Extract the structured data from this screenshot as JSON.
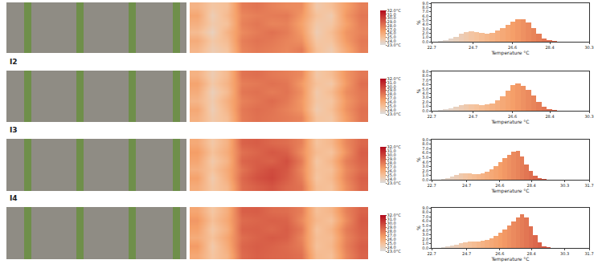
{
  "chart_data": [
    {
      "type": "histogram",
      "bins": [
        23.0,
        23.25,
        23.5,
        23.75,
        24.0,
        24.25,
        24.5,
        24.75,
        25.0,
        25.25,
        25.5,
        25.75,
        26.0,
        26.25,
        26.5,
        26.75,
        27.0,
        27.25,
        27.5,
        27.75,
        28.0,
        28.25,
        28.5,
        28.75,
        29.0,
        29.25,
        29.5,
        29.75,
        30.0
      ],
      "values": [
        0.1,
        0.3,
        0.7,
        1.2,
        1.8,
        2.3,
        2.5,
        2.3,
        2.0,
        1.9,
        2.1,
        2.6,
        3.2,
        3.9,
        4.6,
        5.2,
        5.3,
        4.5,
        3.2,
        1.8,
        0.8,
        0.3,
        0.1,
        0,
        0,
        0,
        0,
        0
      ],
      "xlabel": "Temperature °C",
      "ylabel": "%",
      "xlim": [
        22.7,
        30.3
      ],
      "xticks": [
        22.7,
        24.7,
        26.6,
        28.4,
        30.3
      ],
      "ylim": [
        0,
        9
      ],
      "yticks": [
        {
          "value": 0,
          "label": "0.0"
        },
        {
          "value": 1,
          "label": "1.0"
        },
        {
          "value": 2,
          "label": "2.0"
        },
        {
          "value": 3,
          "label": "3.0"
        },
        {
          "value": 4,
          "label": "4.0"
        },
        {
          "value": 5,
          "label": "5.0"
        },
        {
          "value": 6,
          "label": "6.0"
        },
        {
          "value": 7,
          "label": "7.0"
        },
        {
          "value": 8,
          "label": "8.0"
        },
        {
          "value": 9,
          "label": "9.0"
        }
      ],
      "heatmap": {
        "cells": [
          [
            25.5,
            24.2,
            24.8,
            27.6,
            28.0,
            27.8,
            27.5,
            27.9,
            25.0,
            24.3,
            26.2,
            27.8
          ],
          [
            26.0,
            24.5,
            25.2,
            27.8,
            28.2,
            28.0,
            27.6,
            27.2,
            24.6,
            24.8,
            26.8,
            28.0
          ],
          [
            25.2,
            23.9,
            25.6,
            27.4,
            27.9,
            28.3,
            27.9,
            26.8,
            24.2,
            25.1,
            27.0,
            27.7
          ],
          [
            25.8,
            24.4,
            24.9,
            27.7,
            28.1,
            27.6,
            27.7,
            26.5,
            24.5,
            24.6,
            26.5,
            27.9
          ],
          [
            26.3,
            24.1,
            25.3,
            27.5,
            27.8,
            27.9,
            28.0,
            26.9,
            24.9,
            24.3,
            26.9,
            28.1
          ],
          [
            25.6,
            24.6,
            25.0,
            27.9,
            28.2,
            27.7,
            27.4,
            27.3,
            24.4,
            25.0,
            26.6,
            27.8
          ]
        ],
        "range": [
          23,
          32
        ],
        "ticks": [
          {
            "value": 23,
            "label": "23.0°C"
          },
          {
            "value": 24,
            "label": "24.0"
          },
          {
            "value": 25,
            "label": "25.0"
          },
          {
            "value": 26,
            "label": "26.0"
          },
          {
            "value": 27,
            "label": "27.0"
          },
          {
            "value": 28,
            "label": "28.0"
          },
          {
            "value": 29,
            "label": "29.0"
          },
          {
            "value": 30,
            "label": "30.0"
          },
          {
            "value": 31,
            "label": "31.0"
          },
          {
            "value": 32,
            "label": "32.0°C"
          }
        ]
      }
    },
    {
      "type": "histogram",
      "label": "I2",
      "bins": [
        23.0,
        23.25,
        23.5,
        23.75,
        24.0,
        24.25,
        24.5,
        24.75,
        25.0,
        25.25,
        25.5,
        25.75,
        26.0,
        26.25,
        26.5,
        26.75,
        27.0,
        27.25,
        27.5,
        27.75,
        28.0,
        28.25,
        28.5,
        28.75,
        29.0,
        29.25,
        29.5,
        29.75,
        30.0
      ],
      "values": [
        0.1,
        0.2,
        0.5,
        0.9,
        1.3,
        1.5,
        1.5,
        1.4,
        1.3,
        1.4,
        1.7,
        2.3,
        3.3,
        4.6,
        5.8,
        6.3,
        5.7,
        4.8,
        3.4,
        2.0,
        0.9,
        0.3,
        0.1,
        0,
        0,
        0,
        0,
        0
      ],
      "xlabel": "Temperature °C",
      "ylabel": "%",
      "xlim": [
        22.7,
        30.3
      ],
      "xticks": [
        22.7,
        24.7,
        26.6,
        28.4,
        30.3
      ],
      "ylim": [
        0,
        9
      ],
      "yticks": [
        {
          "value": 0,
          "label": "0.0"
        },
        {
          "value": 1,
          "label": "1.0"
        },
        {
          "value": 2,
          "label": "2.0"
        },
        {
          "value": 3,
          "label": "3.0"
        },
        {
          "value": 4,
          "label": "4.0"
        },
        {
          "value": 5,
          "label": "5.0"
        },
        {
          "value": 6,
          "label": "6.0"
        },
        {
          "value": 7,
          "label": "7.0"
        },
        {
          "value": 8,
          "label": "8.0"
        },
        {
          "value": 9,
          "label": "9.0"
        }
      ],
      "heatmap": {
        "cells": [
          [
            25.8,
            24.4,
            25.1,
            27.9,
            28.3,
            28.1,
            27.9,
            27.6,
            24.8,
            24.6,
            26.7,
            28.2
          ],
          [
            26.2,
            24.1,
            25.5,
            28.0,
            28.4,
            28.2,
            27.7,
            27.0,
            24.3,
            25.0,
            27.1,
            28.3
          ],
          [
            25.5,
            24.3,
            25.8,
            27.7,
            28.1,
            28.5,
            28.0,
            26.9,
            24.6,
            24.7,
            26.9,
            28.0
          ],
          [
            26.0,
            24.0,
            25.2,
            28.1,
            28.3,
            27.9,
            28.2,
            27.2,
            24.4,
            25.2,
            27.3,
            28.1
          ],
          [
            26.4,
            24.5,
            25.6,
            27.8,
            28.0,
            28.3,
            28.1,
            26.8,
            24.9,
            24.5,
            26.8,
            28.4
          ],
          [
            25.7,
            24.2,
            25.3,
            28.2,
            28.4,
            28.0,
            27.8,
            27.4,
            24.5,
            25.1,
            27.0,
            28.0
          ]
        ],
        "range": [
          23,
          32
        ],
        "ticks": [
          {
            "value": 23,
            "label": "23.0°C"
          },
          {
            "value": 24,
            "label": "24.0"
          },
          {
            "value": 25,
            "label": "25.0"
          },
          {
            "value": 26,
            "label": "26.0"
          },
          {
            "value": 27,
            "label": "27.0"
          },
          {
            "value": 28,
            "label": "28.0"
          },
          {
            "value": 29,
            "label": "29.0"
          },
          {
            "value": 30,
            "label": "30.0"
          },
          {
            "value": 31,
            "label": "31.0"
          },
          {
            "value": 32,
            "label": "32.0°C"
          }
        ]
      }
    },
    {
      "type": "histogram",
      "label": "I3",
      "bins": [
        23.0,
        23.25,
        23.5,
        23.75,
        24.0,
        24.25,
        24.5,
        24.75,
        25.0,
        25.25,
        25.5,
        25.75,
        26.0,
        26.25,
        26.5,
        26.75,
        27.0,
        27.25,
        27.5,
        27.75,
        28.0,
        28.25,
        28.5,
        28.75,
        29.0,
        29.25,
        29.5,
        29.75,
        30.0
      ],
      "values": [
        0,
        0.1,
        0.3,
        0.7,
        1.1,
        1.4,
        1.5,
        1.4,
        1.3,
        1.3,
        1.5,
        1.8,
        2.3,
        3.0,
        3.9,
        4.8,
        5.6,
        6.3,
        6.5,
        5.2,
        3.5,
        2.0,
        0.9,
        0.3,
        0.1,
        0,
        0,
        0
      ],
      "xlabel": "Temperature °C",
      "ylabel": "%",
      "xlim": [
        22.7,
        31.7
      ],
      "xticks": [
        22.7,
        24.7,
        26.6,
        28.4,
        30.3,
        31.7
      ],
      "ylim": [
        0,
        9
      ],
      "yticks": [
        {
          "value": 0,
          "label": "0.0"
        },
        {
          "value": 1,
          "label": "1.0"
        },
        {
          "value": 2,
          "label": "2.0"
        },
        {
          "value": 3,
          "label": "3.0"
        },
        {
          "value": 4,
          "label": "4.0"
        },
        {
          "value": 5,
          "label": "5.0"
        },
        {
          "value": 6,
          "label": "6.0"
        },
        {
          "value": 7,
          "label": "7.0"
        },
        {
          "value": 8,
          "label": "8.0"
        },
        {
          "value": 9,
          "label": "9.0"
        }
      ],
      "heatmap": {
        "cells": [
          [
            26.0,
            24.6,
            25.4,
            28.4,
            28.9,
            29.3,
            28.6,
            28.2,
            25.1,
            24.9,
            27.2,
            28.7
          ],
          [
            26.5,
            24.3,
            25.9,
            28.6,
            29.4,
            29.8,
            29.0,
            27.8,
            24.7,
            25.3,
            27.6,
            28.9
          ],
          [
            25.8,
            24.8,
            26.1,
            28.2,
            29.1,
            29.6,
            29.2,
            27.5,
            24.9,
            25.0,
            27.4,
            28.5
          ],
          [
            26.3,
            24.4,
            25.6,
            28.7,
            29.0,
            28.8,
            29.5,
            27.9,
            24.6,
            25.5,
            27.8,
            28.8
          ],
          [
            26.7,
            24.9,
            26.0,
            28.3,
            28.7,
            29.2,
            28.9,
            27.3,
            25.2,
            24.8,
            27.1,
            29.0
          ],
          [
            26.1,
            24.5,
            25.7,
            28.8,
            29.0,
            28.6,
            28.4,
            27.7,
            24.8,
            25.4,
            27.5,
            28.6
          ]
        ],
        "range": [
          23,
          32
        ],
        "ticks": [
          {
            "value": 23,
            "label": "23.0°C"
          },
          {
            "value": 24,
            "label": "24.0"
          },
          {
            "value": 25,
            "label": "25.0"
          },
          {
            "value": 26,
            "label": "26.0"
          },
          {
            "value": 27,
            "label": "27.0"
          },
          {
            "value": 28,
            "label": "28.0"
          },
          {
            "value": 29,
            "label": "29.0"
          },
          {
            "value": 30,
            "label": "30.0"
          },
          {
            "value": 31,
            "label": "31.0"
          },
          {
            "value": 32,
            "label": "32.0°C"
          }
        ]
      }
    },
    {
      "type": "histogram",
      "label": "I4",
      "bins": [
        23.0,
        23.25,
        23.5,
        23.75,
        24.0,
        24.25,
        24.5,
        24.75,
        25.0,
        25.25,
        25.5,
        25.75,
        26.0,
        26.25,
        26.5,
        26.75,
        27.0,
        27.25,
        27.5,
        27.75,
        28.0,
        28.25,
        28.5,
        28.75,
        29.0,
        29.25,
        29.5,
        29.75,
        30.0
      ],
      "values": [
        0,
        0.1,
        0.2,
        0.5,
        0.8,
        1.1,
        1.3,
        1.4,
        1.5,
        1.5,
        1.6,
        1.8,
        2.2,
        2.7,
        3.4,
        4.2,
        5.1,
        6.0,
        6.9,
        7.5,
        6.8,
        4.9,
        2.8,
        1.2,
        0.4,
        0.1,
        0,
        0
      ],
      "xlabel": "Temperature °C",
      "ylabel": "%",
      "xlim": [
        22.7,
        31.7
      ],
      "xticks": [
        22.7,
        24.7,
        26.6,
        28.4,
        30.3,
        31.7
      ],
      "ylim": [
        0,
        9
      ],
      "yticks": [
        {
          "value": 0,
          "label": "0.0"
        },
        {
          "value": 1,
          "label": "1.0"
        },
        {
          "value": 2,
          "label": "2.0"
        },
        {
          "value": 3,
          "label": "3.0"
        },
        {
          "value": 4,
          "label": "4.0"
        },
        {
          "value": 5,
          "label": "5.0"
        },
        {
          "value": 6,
          "label": "6.0"
        },
        {
          "value": 7,
          "label": "7.0"
        },
        {
          "value": 8,
          "label": "8.0"
        },
        {
          "value": 9,
          "label": "9.0"
        }
      ],
      "heatmap": {
        "cells": [
          [
            26.2,
            24.7,
            25.6,
            28.5,
            28.9,
            28.7,
            28.6,
            28.3,
            25.3,
            25.0,
            27.5,
            28.8
          ],
          [
            26.8,
            24.4,
            26.0,
            28.7,
            29.0,
            28.8,
            28.5,
            27.9,
            24.9,
            25.4,
            27.8,
            29.0
          ],
          [
            26.0,
            24.9,
            26.3,
            28.4,
            28.8,
            29.1,
            28.9,
            27.6,
            25.1,
            25.2,
            27.6,
            28.7
          ],
          [
            26.5,
            24.5,
            25.8,
            28.8,
            28.9,
            28.6,
            29.0,
            28.0,
            24.8,
            25.6,
            27.9,
            28.9
          ],
          [
            26.9,
            25.0,
            26.2,
            28.5,
            28.7,
            28.9,
            28.8,
            27.4,
            25.4,
            24.9,
            27.3,
            29.1
          ],
          [
            26.3,
            24.6,
            25.9,
            28.9,
            29.0,
            28.5,
            28.4,
            27.8,
            25.0,
            25.5,
            27.7,
            28.8
          ]
        ],
        "range": [
          23,
          32
        ],
        "ticks": [
          {
            "value": 23,
            "label": "23.0°C"
          },
          {
            "value": 24,
            "label": "24.0"
          },
          {
            "value": 25,
            "label": "25.0"
          },
          {
            "value": 26,
            "label": "26.0"
          },
          {
            "value": 27,
            "label": "27.0"
          },
          {
            "value": 28,
            "label": "28.0"
          },
          {
            "value": 29,
            "label": "29.0"
          },
          {
            "value": 30,
            "label": "30.0"
          },
          {
            "value": 31,
            "label": "31.0"
          },
          {
            "value": 32,
            "label": "32.0°C"
          }
        ]
      }
    }
  ]
}
